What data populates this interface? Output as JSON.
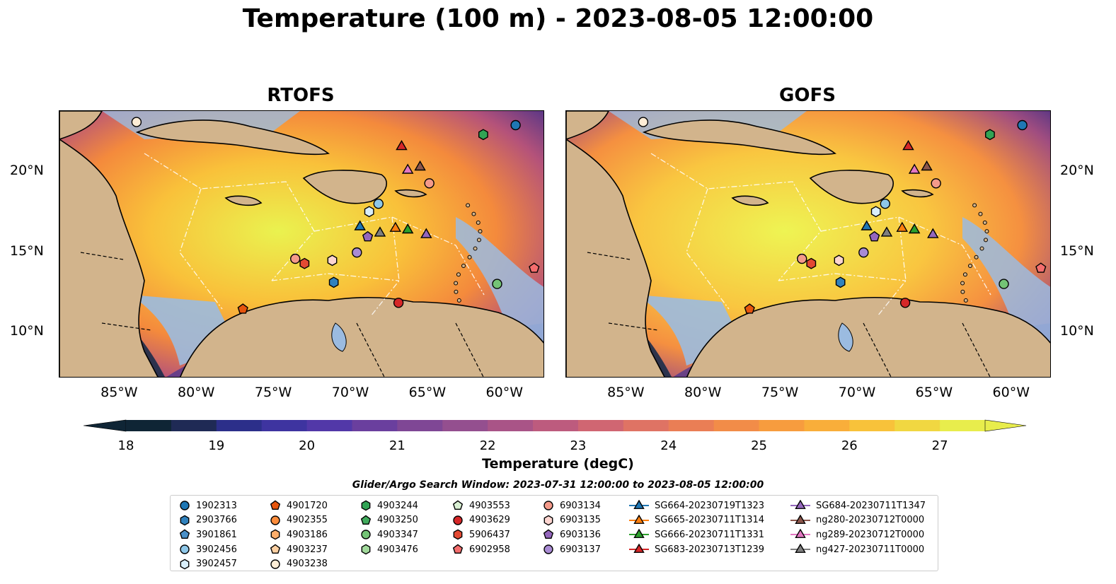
{
  "title": "Temperature (100 m) - 2023-08-05 12:00:00",
  "panels": [
    {
      "title": "RTOFS"
    },
    {
      "title": "GOFS"
    }
  ],
  "axes": {
    "lon_ticks": [
      "85°W",
      "80°W",
      "75°W",
      "70°W",
      "65°W",
      "60°W"
    ],
    "lat_ticks": [
      "20°N",
      "15°N",
      "10°N"
    ]
  },
  "colorbar": {
    "label": "Temperature (degC)",
    "ticks": [
      "18",
      "19",
      "20",
      "21",
      "22",
      "23",
      "24",
      "25",
      "26",
      "27"
    ],
    "min": 18,
    "max": 27,
    "extend": "both"
  },
  "search_window": "Glider/Argo Search Window: 2023-07-31 12:00:00 to 2023-08-05 12:00:00",
  "legend": {
    "columns": [
      [
        {
          "label": "1902313",
          "marker": "circle",
          "color": "#1f77b4"
        },
        {
          "label": "2903766",
          "marker": "hexagon",
          "color": "#3182bd"
        },
        {
          "label": "3901861",
          "marker": "pentagon",
          "color": "#4a90c8"
        },
        {
          "label": "3902456",
          "marker": "circle",
          "color": "#8ec7e8"
        },
        {
          "label": "3902457",
          "marker": "hexagon",
          "color": "#d9eefa"
        }
      ],
      [
        {
          "label": "4901720",
          "marker": "pentagon",
          "color": "#e6550d"
        },
        {
          "label": "4902355",
          "marker": "circle",
          "color": "#fd8d3c"
        },
        {
          "label": "4903186",
          "marker": "hexagon",
          "color": "#fdae6b"
        },
        {
          "label": "4903237",
          "marker": "pentagon",
          "color": "#fdd0a2"
        },
        {
          "label": "4903238",
          "marker": "circle",
          "color": "#feedd6"
        }
      ],
      [
        {
          "label": "4903244",
          "marker": "hexagon",
          "color": "#31a354"
        },
        {
          "label": "4903250",
          "marker": "pentagon",
          "color": "#41ab5d"
        },
        {
          "label": "4903347",
          "marker": "circle",
          "color": "#74c476"
        },
        {
          "label": "4903476",
          "marker": "hexagon",
          "color": "#a1d99b"
        }
      ],
      [
        {
          "label": "4903553",
          "marker": "pentagon",
          "color": "#d9f0d3"
        },
        {
          "label": "4903629",
          "marker": "circle",
          "color": "#d62728"
        },
        {
          "label": "5906437",
          "marker": "hexagon",
          "color": "#e34a33"
        },
        {
          "label": "6902958",
          "marker": "pentagon",
          "color": "#f46d6d"
        }
      ],
      [
        {
          "label": "6903134",
          "marker": "circle",
          "color": "#f49a8a"
        },
        {
          "label": "6903135",
          "marker": "hexagon",
          "color": "#fdd5d0"
        },
        {
          "label": "6903136",
          "marker": "pentagon",
          "color": "#9467bd"
        },
        {
          "label": "6903137",
          "marker": "circle",
          "color": "#a98bd4"
        }
      ],
      [
        {
          "label": "SG664-20230719T1323",
          "marker": "triangle-line",
          "color": "#1f77b4"
        },
        {
          "label": "SG665-20230711T1314",
          "marker": "triangle-line",
          "color": "#ff7f0e"
        },
        {
          "label": "SG666-20230711T1331",
          "marker": "triangle-line",
          "color": "#2ca02c"
        },
        {
          "label": "SG683-20230713T1239",
          "marker": "triangle-line",
          "color": "#d62728"
        }
      ],
      [
        {
          "label": "SG684-20230711T1347",
          "marker": "triangle-line",
          "color": "#9467bd"
        },
        {
          "label": "ng280-20230712T0000",
          "marker": "triangle-line",
          "color": "#8c564b"
        },
        {
          "label": "ng289-20230712T0000",
          "marker": "triangle-line",
          "color": "#e377c2"
        },
        {
          "label": "ng427-20230711T0000",
          "marker": "triangle-line",
          "color": "#7f7f7f"
        }
      ]
    ]
  },
  "map_markers": [
    {
      "id": "1902313",
      "marker": "circle",
      "color": "#1f77b4",
      "lon": -59.4,
      "lat": 23.1
    },
    {
      "id": "4903238",
      "marker": "circle",
      "color": "#feedd6",
      "lon": -84.0,
      "lat": 23.3
    },
    {
      "id": "4903244",
      "marker": "hexagon",
      "color": "#31a354",
      "lon": -61.5,
      "lat": 22.5
    },
    {
      "id": "SG683",
      "marker": "triangle",
      "color": "#d62728",
      "lon": -66.8,
      "lat": 21.8
    },
    {
      "id": "ng289",
      "marker": "triangle",
      "color": "#e377c2",
      "lon": -66.4,
      "lat": 20.3
    },
    {
      "id": "ng280",
      "marker": "triangle",
      "color": "#8c564b",
      "lon": -65.6,
      "lat": 20.5
    },
    {
      "id": "6903134",
      "marker": "circle",
      "color": "#f49a8a",
      "lon": -65.0,
      "lat": 19.4
    },
    {
      "id": "3902456",
      "marker": "circle",
      "color": "#8ec7e8",
      "lon": -68.3,
      "lat": 18.1
    },
    {
      "id": "3902457",
      "marker": "hexagon",
      "color": "#d9eefa",
      "lon": -68.9,
      "lat": 17.6
    },
    {
      "id": "SG664",
      "marker": "triangle",
      "color": "#1f77b4",
      "lon": -69.5,
      "lat": 16.7
    },
    {
      "id": "6903136",
      "marker": "pentagon",
      "color": "#9467bd",
      "lon": -69.0,
      "lat": 16.0
    },
    {
      "id": "ng427",
      "marker": "triangle",
      "color": "#7f7f7f",
      "lon": -68.2,
      "lat": 16.3
    },
    {
      "id": "SG665",
      "marker": "triangle",
      "color": "#ff7f0e",
      "lon": -67.2,
      "lat": 16.6
    },
    {
      "id": "SG666",
      "marker": "triangle",
      "color": "#2ca02c",
      "lon": -66.4,
      "lat": 16.5
    },
    {
      "id": "SG684",
      "marker": "triangle",
      "color": "#9467bd",
      "lon": -65.2,
      "lat": 16.2
    },
    {
      "id": "6903137",
      "marker": "circle",
      "color": "#a98bd4",
      "lon": -69.7,
      "lat": 15.0
    },
    {
      "id": "6903135",
      "marker": "hexagon",
      "color": "#fdd5d0",
      "lon": -71.3,
      "lat": 14.5
    },
    {
      "id": "6903134b",
      "marker": "circle",
      "color": "#f49a8a",
      "lon": -73.7,
      "lat": 14.6
    },
    {
      "id": "5906437",
      "marker": "hexagon",
      "color": "#e34a33",
      "lon": -73.1,
      "lat": 14.3
    },
    {
      "id": "2903766",
      "marker": "hexagon",
      "color": "#3182bd",
      "lon": -71.2,
      "lat": 13.1
    },
    {
      "id": "4901720",
      "marker": "pentagon",
      "color": "#e6550d",
      "lon": -77.1,
      "lat": 11.4
    },
    {
      "id": "4903629",
      "marker": "circle",
      "color": "#d62728",
      "lon": -67.0,
      "lat": 11.8
    },
    {
      "id": "4903347",
      "marker": "circle",
      "color": "#74c476",
      "lon": -60.6,
      "lat": 13.0
    },
    {
      "id": "6902958",
      "marker": "pentagon",
      "color": "#f46d6d",
      "lon": -58.2,
      "lat": 14.0
    }
  ]
}
